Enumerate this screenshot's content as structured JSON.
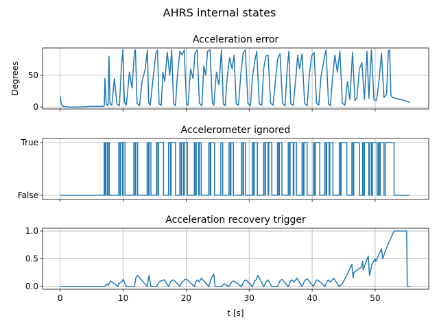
{
  "figure": {
    "suptitle": "AHRS internal states"
  },
  "colors": {
    "series": "#1f77b4",
    "grid": "#b0b0b0",
    "axes": "#000000"
  },
  "chart_data": [
    {
      "type": "line",
      "title": "Acceleration error",
      "xlabel": "",
      "ylabel": "Degrees",
      "xlim": [
        -2.8,
        58.5
      ],
      "ylim": [
        -3,
        93
      ],
      "xticks": [
        0,
        10,
        20,
        30,
        40,
        50
      ],
      "xtick_labels_visible": false,
      "yticks": [
        0,
        50
      ],
      "ytick_labels": [
        "0",
        "50"
      ],
      "grid": true,
      "series": [
        {
          "values_kind": "spiky",
          "t": [
            0,
            0.2,
            0.5,
            1.5,
            3,
            5,
            6.8,
            7.0,
            7.1,
            7.3,
            7.6,
            7.75,
            7.9,
            8.2,
            8.6,
            9.0,
            9.4,
            9.7,
            9.95,
            10.2,
            10.5,
            11.0,
            11.4,
            11.8,
            11.95,
            12.2,
            12.6,
            13.0,
            13.5,
            13.85,
            14.05,
            14.3,
            14.8,
            15.2,
            15.45,
            15.7,
            16.05,
            16.3,
            16.6,
            17.0,
            17.4,
            17.7,
            18.0,
            18.3,
            18.6,
            19.0,
            19.35,
            19.7,
            20.05,
            20.3,
            20.7,
            21.1,
            21.4,
            21.75,
            22.1,
            22.5,
            22.8,
            23.1,
            23.4,
            23.8,
            24.15,
            24.4,
            24.8,
            25.2,
            25.6,
            25.9,
            26.2,
            26.5,
            26.9,
            27.3,
            27.6,
            27.95,
            28.3,
            28.7,
            29.05,
            29.4,
            29.8,
            30.2,
            30.5,
            30.85,
            31.2,
            31.6,
            32.0,
            32.3,
            32.65,
            33.0,
            33.4,
            33.8,
            34.15,
            34.5,
            34.9,
            35.3,
            35.7,
            36.0,
            36.3,
            36.6,
            37.0,
            37.4,
            37.7,
            38.0,
            38.4,
            38.8,
            39.2,
            39.55,
            39.9,
            40.3,
            40.7,
            41.05,
            41.4,
            41.8,
            42.2,
            42.6,
            42.9,
            43.2,
            43.6,
            44.0,
            44.4,
            44.8,
            45.2,
            45.6,
            46.0,
            46.4,
            46.8,
            47.1,
            47.5,
            47.9,
            48.3,
            48.7,
            49.0,
            49.4,
            49.8,
            50.2,
            50.6,
            51.0,
            51.4,
            51.8,
            52.1,
            52.3,
            52.5,
            52.8,
            53.2,
            54.0,
            54.8,
            55.5
          ],
          "y": [
            17,
            4,
            1,
            0,
            0,
            1,
            1,
            2,
            45,
            5,
            2,
            80,
            6,
            3,
            45,
            5,
            2,
            60,
            90,
            8,
            3,
            55,
            30,
            88,
            90,
            6,
            2,
            40,
            60,
            90,
            7,
            3,
            50,
            85,
            90,
            5,
            3,
            55,
            40,
            86,
            50,
            90,
            6,
            2,
            48,
            88,
            82,
            90,
            5,
            3,
            60,
            45,
            85,
            90,
            6,
            2,
            65,
            50,
            88,
            90,
            8,
            3,
            55,
            35,
            90,
            5,
            2,
            45,
            78,
            60,
            82,
            5,
            3,
            55,
            85,
            90,
            6,
            2,
            45,
            70,
            88,
            5,
            3,
            60,
            80,
            82,
            6,
            3,
            40,
            75,
            84,
            6,
            2,
            55,
            88,
            5,
            3,
            45,
            82,
            60,
            84,
            6,
            2,
            50,
            80,
            86,
            6,
            3,
            48,
            70,
            90,
            5,
            2,
            42,
            82,
            55,
            88,
            6,
            3,
            40,
            12,
            86,
            10,
            15,
            60,
            70,
            12,
            88,
            14,
            90,
            12,
            10,
            40,
            85,
            15,
            20,
            88,
            90,
            18,
            15,
            14,
            12,
            10,
            7
          ]
        }
      ]
    },
    {
      "type": "line",
      "title": "Accelerometer ignored",
      "xlabel": "",
      "ylabel": "",
      "xlim": [
        -2.8,
        58.5
      ],
      "ylim": [
        -0.08,
        1.08
      ],
      "xticks": [
        0,
        10,
        20,
        30,
        40,
        50
      ],
      "xtick_labels_visible": false,
      "yticks": [
        0,
        1
      ],
      "ytick_labels": [
        "False",
        "True"
      ],
      "grid": true,
      "series": [
        {
          "values_kind": "step",
          "toggles_t": [
            7.0,
            7.15,
            7.25,
            7.5,
            7.6,
            7.8,
            9.3,
            9.5,
            9.6,
            9.9,
            10.0,
            10.3,
            11.7,
            11.9,
            12.0,
            12.3,
            13.8,
            14.0,
            14.1,
            14.4,
            15.3,
            15.5,
            15.6,
            16.4,
            17.2,
            17.5,
            17.6,
            18.3,
            19.0,
            19.2,
            19.3,
            19.6,
            19.7,
            20.2,
            21.3,
            21.5,
            21.6,
            22.0,
            22.1,
            22.4,
            23.6,
            23.8,
            23.9,
            24.5,
            25.5,
            25.8,
            26.8,
            27.0,
            27.1,
            27.5,
            28.8,
            29.0,
            29.1,
            29.4,
            30.5,
            30.7,
            30.8,
            31.3,
            32.3,
            32.5,
            32.6,
            33.0,
            33.1,
            33.6,
            34.5,
            34.7,
            34.8,
            35.2,
            36.2,
            36.4,
            36.5,
            37.0,
            37.1,
            37.5,
            38.4,
            38.6,
            38.7,
            39.2,
            40.2,
            40.4,
            40.5,
            41.2,
            42.0,
            42.2,
            42.3,
            42.7,
            42.8,
            43.3,
            44.3,
            44.5,
            44.6,
            45.5,
            46.3,
            46.5,
            46.6,
            47.5,
            48.0,
            48.2,
            48.3,
            49.0,
            49.1,
            49.4,
            49.6,
            50.3,
            50.5,
            50.7,
            50.8,
            51.4,
            51.6,
            53.0
          ],
          "start_state": 0,
          "t_end": 55.5
        }
      ]
    },
    {
      "type": "line",
      "title": "Acceleration recovery trigger",
      "xlabel": "t [s]",
      "ylabel": "",
      "xlim": [
        -2.8,
        58.5
      ],
      "ylim": [
        -0.05,
        1.05
      ],
      "xticks": [
        0,
        10,
        20,
        30,
        40,
        50
      ],
      "xtick_labels": [
        "0",
        "10",
        "20",
        "30",
        "40",
        "50"
      ],
      "yticks": [
        0,
        0.5,
        1.0
      ],
      "ytick_labels": [
        "0.0",
        "0.5",
        "1.0"
      ],
      "grid": true,
      "series": [
        {
          "values_kind": "sawtooth",
          "t": [
            0,
            7.0,
            7.5,
            7.6,
            7.9,
            8.0,
            9.2,
            9.3,
            9.9,
            10.0,
            10.5,
            11.8,
            12.0,
            12.3,
            13.8,
            14.1,
            14.4,
            15.3,
            15.7,
            16.0,
            16.5,
            17.2,
            17.6,
            18.0,
            19.0,
            19.3,
            19.6,
            19.8,
            20.2,
            21.3,
            21.6,
            21.8,
            22.1,
            22.4,
            23.6,
            24.0,
            24.4,
            24.6,
            25.6,
            26.0,
            26.8,
            27.2,
            27.5,
            28.8,
            29.2,
            29.5,
            30.5,
            30.9,
            31.1,
            31.4,
            32.3,
            32.8,
            33.0,
            33.6,
            34.5,
            34.9,
            35.2,
            36.2,
            36.6,
            36.8,
            37.1,
            37.6,
            38.4,
            38.8,
            39.2,
            40.2,
            40.6,
            40.8,
            41.3,
            42.0,
            42.4,
            42.6,
            42.9,
            43.4,
            44.3,
            44.8,
            45.6,
            46.3,
            46.5,
            46.6,
            47.8,
            48.0,
            48.1,
            48.9,
            49.1,
            49.5,
            50.0,
            50.1,
            51.0,
            51.2,
            51.5,
            52.0,
            53.0,
            53.1,
            54.0,
            55.0,
            55.1,
            55.6
          ],
          "y": [
            0,
            0,
            0.05,
            0.02,
            0.08,
            0.1,
            0,
            0.05,
            0.1,
            0.13,
            0,
            0,
            0.15,
            0.2,
            0,
            0.2,
            0,
            0,
            0.08,
            0.1,
            0.12,
            0,
            0.1,
            0.12,
            0,
            0.08,
            0.1,
            0.13,
            0.12,
            0,
            0.1,
            0.12,
            0.08,
            0.15,
            0,
            0.15,
            0.22,
            0,
            0,
            0.05,
            0,
            0.08,
            0.1,
            0,
            0.1,
            0.12,
            0,
            0.1,
            0.12,
            0.2,
            0,
            0.1,
            0.12,
            0,
            0,
            0.1,
            0.13,
            0,
            0.1,
            0.12,
            0.08,
            0.15,
            0,
            0.1,
            0.14,
            0,
            0.1,
            0.12,
            0.08,
            0,
            0.1,
            0.12,
            0.08,
            0.15,
            0,
            0.05,
            0.23,
            0.4,
            0.15,
            0.25,
            0.35,
            0.45,
            0.3,
            0.55,
            0.2,
            0.4,
            0.5,
            0.45,
            0.68,
            0.5,
            0.6,
            0.75,
            1.0,
            1.0,
            1.0,
            1.0,
            0,
            0
          ]
        }
      ]
    }
  ]
}
